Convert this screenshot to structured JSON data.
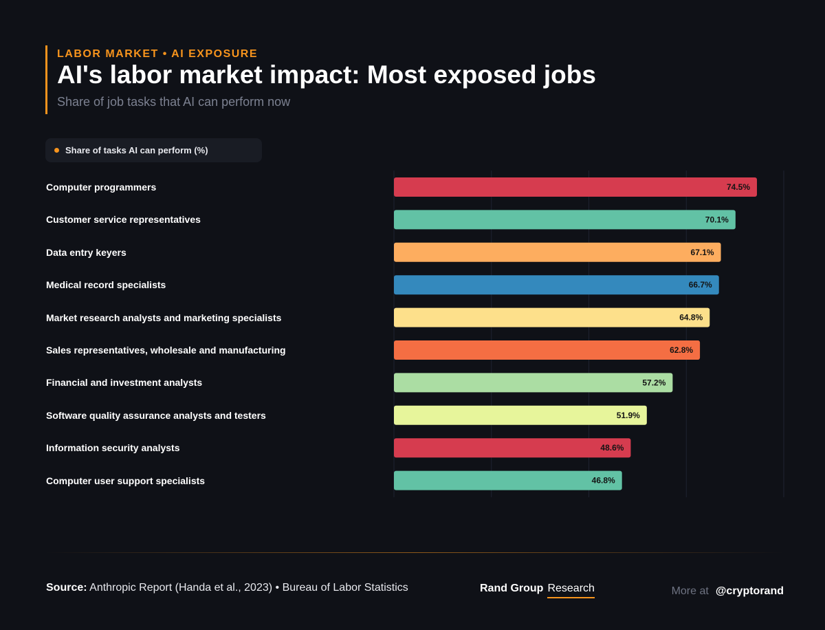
{
  "header": {
    "kicker": "LABOR MARKET • AI EXPOSURE",
    "title": "AI's labor market impact: Most exposed jobs",
    "subtitle": "Share of job tasks that AI can perform now"
  },
  "legend": {
    "label": "Share of tasks AI can perform (%)",
    "color": "#f7941d"
  },
  "chart_data": {
    "type": "bar",
    "orientation": "horizontal",
    "title": "AI's labor market impact: Most exposed jobs",
    "subtitle": "Share of job tasks that AI can perform now",
    "series_name": "Share of tasks AI can perform (%)",
    "categories": [
      "Computer programmers",
      "Customer service representatives",
      "Data entry keyers",
      "Medical record specialists",
      "Market research analysts and marketing specialists",
      "Sales representatives, wholesale and manufacturing",
      "Financial and investment analysts",
      "Software quality assurance analysts and testers",
      "Information security analysts",
      "Computer user support specialists"
    ],
    "values": [
      74.5,
      70.1,
      67.1,
      66.7,
      64.8,
      62.8,
      57.2,
      51.9,
      48.6,
      46.8
    ],
    "value_labels": [
      "74.5%",
      "70.1%",
      "67.1%",
      "66.7%",
      "64.8%",
      "62.8%",
      "57.2%",
      "51.9%",
      "48.6%",
      "46.8%"
    ],
    "colors": [
      "#d63c4f",
      "#62c2a5",
      "#fdad5f",
      "#3489bd",
      "#fde08b",
      "#f46e43",
      "#abdda3",
      "#e7f59b",
      "#d63c4f",
      "#62c2a5"
    ],
    "xlim": [
      0,
      80
    ],
    "grid": true
  },
  "footer": {
    "source_label": "Source:",
    "source_text": "Anthropic Report (Handa et al., 2023) • Bureau of Labor Statistics",
    "brand_name": "Rand Group",
    "brand_sub": "Research",
    "more_label": "More at",
    "handle": "@cryptorand"
  }
}
